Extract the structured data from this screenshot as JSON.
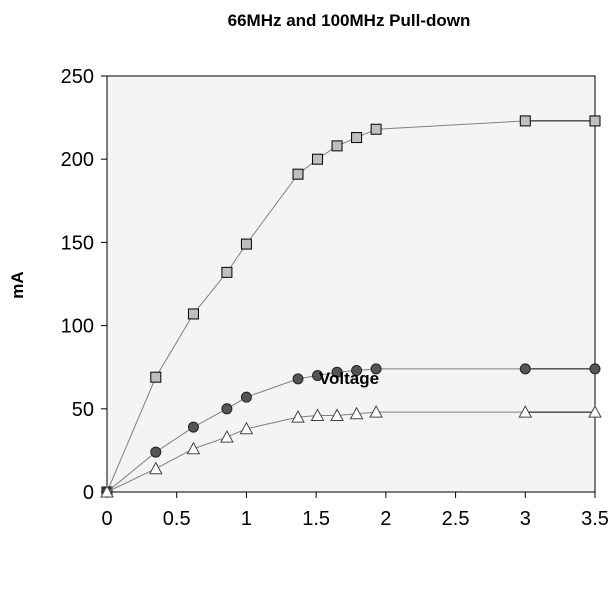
{
  "chart_data": {
    "type": "line",
    "title": "66MHz and 100MHz Pull-down",
    "xlabel": "Voltage",
    "ylabel": "mA",
    "xlim": [
      0,
      3.5
    ],
    "ylim": [
      0,
      250
    ],
    "x_ticks": [
      "0",
      "0.5",
      "1",
      "1.5",
      "2",
      "2.5",
      "3",
      "3.5"
    ],
    "y_ticks": [
      "0",
      "50",
      "100",
      "150",
      "200",
      "250"
    ],
    "grid": false,
    "legend": "none",
    "colors": {
      "plot_background": "#f4f4f4",
      "line": "#808080",
      "square_marker_fill": "#bfbfbf",
      "circle_marker_fill": "#555555",
      "triangle_marker_fill": "#ffffff",
      "tail_line": "#000000"
    },
    "series": [
      {
        "marker": "square",
        "points": [
          [
            0,
            0
          ],
          [
            0.35,
            69
          ],
          [
            0.62,
            107
          ],
          [
            0.86,
            132
          ],
          [
            1.0,
            149
          ],
          [
            1.37,
            191
          ],
          [
            1.51,
            200
          ],
          [
            1.65,
            208
          ],
          [
            1.79,
            213
          ],
          [
            1.93,
            218
          ],
          [
            3.0,
            223
          ],
          [
            3.5,
            223
          ]
        ]
      },
      {
        "marker": "circle",
        "points": [
          [
            0,
            0
          ],
          [
            0.35,
            24
          ],
          [
            0.62,
            39
          ],
          [
            0.86,
            50
          ],
          [
            1.0,
            57
          ],
          [
            1.37,
            68
          ],
          [
            1.51,
            70
          ],
          [
            1.65,
            72
          ],
          [
            1.79,
            73
          ],
          [
            1.93,
            74
          ],
          [
            3.0,
            74
          ],
          [
            3.5,
            74
          ]
        ]
      },
      {
        "marker": "triangle",
        "points": [
          [
            0,
            0
          ],
          [
            0.35,
            14
          ],
          [
            0.62,
            26
          ],
          [
            0.86,
            33
          ],
          [
            1.0,
            38
          ],
          [
            1.37,
            45
          ],
          [
            1.51,
            46
          ],
          [
            1.65,
            46
          ],
          [
            1.79,
            47
          ],
          [
            1.93,
            48
          ],
          [
            3.0,
            48
          ],
          [
            3.5,
            48
          ]
        ]
      }
    ]
  }
}
